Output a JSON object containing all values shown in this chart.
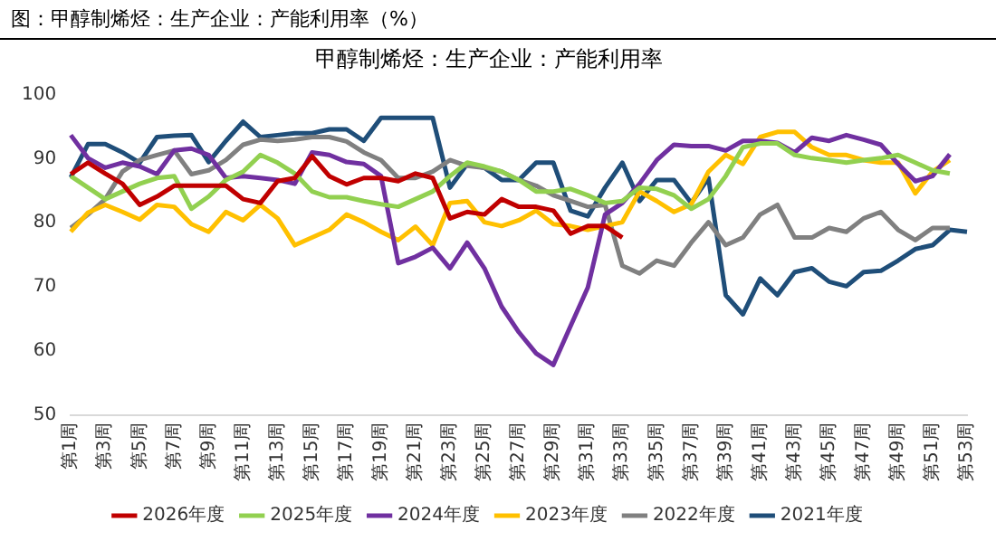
{
  "chart_data": {
    "type": "line",
    "title": "甲醇制烯烃：生产企业：产能利用率",
    "annotations": [
      "图：甲醇制烯烃：生产企业：产能利用率（%）"
    ],
    "categories": [
      "第1周",
      null,
      "第3周",
      null,
      "第5周",
      null,
      "第7周",
      null,
      "第9周",
      null,
      "第11周",
      null,
      "第13周",
      null,
      "第15周",
      null,
      "第17周",
      null,
      "第19周",
      null,
      "第21周",
      null,
      "第23周",
      null,
      "第25周",
      null,
      "第27周",
      null,
      "第29周",
      null,
      "第31周",
      null,
      "第33周",
      null,
      "第35周",
      null,
      "第37周",
      null,
      "第39周",
      null,
      "第41周",
      null,
      "第43周",
      null,
      "第45周",
      null,
      "第47周",
      null,
      "第49周",
      null,
      "第51周",
      null,
      "第53周"
    ],
    "series": [
      {
        "name": "2026年度",
        "color": "#c00000",
        "values": [
          87.6,
          89.4,
          87.7,
          86.1,
          82.8,
          84.1,
          85.8,
          85.8,
          85.8,
          85.8,
          83.7,
          83.1,
          86.5,
          87,
          90.4,
          87.3,
          86,
          87,
          87,
          86.5,
          87.7,
          87,
          80.7,
          81.7,
          81.3,
          83.7,
          82.5,
          82.5,
          81.9,
          78.3,
          79.5,
          79.5,
          77.7,
          null,
          null,
          null,
          null,
          null,
          null,
          null,
          null,
          null,
          null,
          null,
          null,
          null,
          null,
          null,
          null,
          null,
          null,
          null,
          null
        ]
      },
      {
        "name": "2025年度",
        "color": "#92d050",
        "values": [
          87.3,
          85.5,
          83.7,
          84.9,
          86.1,
          87,
          87.3,
          82.2,
          84.1,
          86.7,
          88,
          90.6,
          89.4,
          87.7,
          84.9,
          84,
          84,
          83.4,
          82.9,
          82.5,
          83.7,
          84.9,
          87.3,
          89.4,
          88.8,
          88,
          86.7,
          84.9,
          84.9,
          85.3,
          84.3,
          83.1,
          83.4,
          85.5,
          85.3,
          84.3,
          82.2,
          83.7,
          87.3,
          91.8,
          92.4,
          92.4,
          90.6,
          90.1,
          89.8,
          89.4,
          89.8,
          90.1,
          90.6,
          89.4,
          88.2,
          87.7,
          null
        ]
      },
      {
        "name": "2024年度",
        "color": "#7030a0",
        "values": [
          93.7,
          90.1,
          88.6,
          89.4,
          88.8,
          87.6,
          91.3,
          91.6,
          90.6,
          87,
          87.3,
          87,
          86.7,
          86.1,
          91,
          90.6,
          89.5,
          89.2,
          87.3,
          73.7,
          74.7,
          76.1,
          72.9,
          76.9,
          72.9,
          66.9,
          62.9,
          59.6,
          57.8,
          63.9,
          69.9,
          81.3,
          83.1,
          86.1,
          89.8,
          92.2,
          92,
          92,
          91.3,
          92.8,
          92.8,
          92.5,
          91,
          93.3,
          92.8,
          93.7,
          93,
          92.2,
          89.2,
          86.5,
          87.3,
          90.7,
          null
        ]
      },
      {
        "name": "2023年度",
        "color": "#ffc000",
        "values": [
          78.6,
          81.6,
          82.8,
          81.7,
          80.5,
          82.8,
          82.5,
          79.8,
          78.6,
          81.7,
          80.4,
          82.8,
          80.7,
          76.5,
          77.7,
          78.9,
          81.3,
          80.1,
          78.6,
          77.3,
          79.4,
          76.5,
          83.1,
          83.4,
          80.1,
          79.5,
          80.4,
          81.9,
          79.8,
          79.5,
          78.9,
          79.5,
          80.1,
          84.9,
          83.4,
          81.7,
          82.9,
          88,
          90.6,
          89.2,
          93.4,
          94.2,
          94.2,
          91.8,
          90.6,
          90.6,
          89.8,
          89.4,
          89.4,
          84.6,
          88,
          89.8,
          null
        ]
      },
      {
        "name": "2022年度",
        "color": "#808080",
        "values": [
          79.2,
          81.3,
          83.7,
          88,
          89.8,
          90.6,
          91.3,
          87.6,
          88.2,
          89.8,
          92.2,
          93,
          92.8,
          93,
          93.4,
          93.4,
          92.7,
          91,
          89.8,
          87,
          87,
          88,
          89.8,
          88.9,
          88.6,
          88,
          86.7,
          85.8,
          84.3,
          83.4,
          82.5,
          82.8,
          73.3,
          72.1,
          74.1,
          73.3,
          76.9,
          80.1,
          76.5,
          77.7,
          81.3,
          82.8,
          77.7,
          77.7,
          79.2,
          78.6,
          80.7,
          81.7,
          78.9,
          77.3,
          79.2,
          79.2,
          null
        ]
      },
      {
        "name": "2021年度",
        "color": "#1f4e79",
        "values": [
          87.1,
          92.3,
          92.3,
          91,
          89.4,
          93.4,
          93.6,
          93.7,
          89.5,
          92.8,
          95.8,
          93.4,
          93.7,
          94,
          94,
          94.6,
          94.6,
          92.8,
          96.4,
          96.4,
          96.4,
          96.4,
          85.5,
          89.2,
          88.6,
          86.7,
          86.7,
          89.4,
          89.4,
          81.9,
          81,
          85.5,
          89.4,
          83.4,
          86.7,
          86.7,
          83.1,
          87,
          68.7,
          65.7,
          71.3,
          68.7,
          72.3,
          72.9,
          70.8,
          70.1,
          72.3,
          72.5,
          74.1,
          75.9,
          76.5,
          78.9,
          78.6
        ]
      }
    ],
    "ylim": [
      50,
      100
    ],
    "yticks": [
      50,
      60,
      70,
      80,
      90,
      100
    ],
    "grid": false,
    "legend": "bottom",
    "marker": "none",
    "line_style": "solid"
  }
}
